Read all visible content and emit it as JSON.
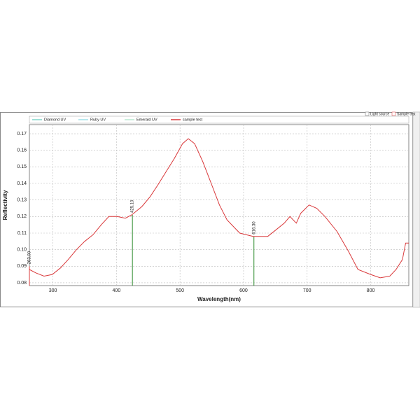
{
  "chart_data": {
    "type": "line",
    "x_label": "Wavelength(nm)",
    "y_label": "Reflectivity",
    "toggles": [
      "Light source",
      "Sample test"
    ],
    "legend_items": [
      {
        "name": "Diamond UV",
        "color": "#7fd6c8"
      },
      {
        "name": "Ruby UV",
        "color": "#9fe0e8"
      },
      {
        "name": "Emerald UV",
        "color": "#b8e8d0"
      }
    ],
    "x": [
      263,
      273,
      286,
      299,
      312,
      324,
      337,
      350,
      363,
      376,
      388,
      401,
      414,
      424,
      440,
      453,
      465,
      478,
      491,
      504,
      513,
      523,
      536,
      549,
      562,
      574,
      594,
      615,
      638,
      651,
      664,
      673,
      683,
      690,
      703,
      715,
      728,
      747,
      765,
      780,
      800,
      815,
      830,
      840,
      850,
      855,
      860
    ],
    "series": [
      {
        "name": "sample test",
        "color": "#d9383a",
        "values": [
          0.088,
          0.086,
          0.084,
          0.085,
          0.089,
          0.094,
          0.1,
          0.105,
          0.109,
          0.115,
          0.12,
          0.12,
          0.119,
          0.121,
          0.126,
          0.132,
          0.139,
          0.147,
          0.155,
          0.164,
          0.167,
          0.164,
          0.153,
          0.14,
          0.127,
          0.118,
          0.11,
          0.108,
          0.108,
          0.112,
          0.116,
          0.12,
          0.116,
          0.122,
          0.127,
          0.125,
          0.12,
          0.111,
          0.099,
          0.088,
          0.085,
          0.083,
          0.084,
          0.088,
          0.094,
          0.104,
          0.104
        ]
      }
    ],
    "markers": [
      {
        "x": 263,
        "y": 0.09,
        "label": "263.00",
        "color": "#d9383a"
      },
      {
        "x": 425.1,
        "y": 0.121,
        "label": "425.10",
        "color": "#2e8b2e"
      },
      {
        "x": 616.3,
        "y": 0.108,
        "label": "616.30",
        "color": "#2e8b2e"
      }
    ],
    "xlim": [
      263,
      860
    ],
    "xticks": [
      300,
      400,
      500,
      600,
      700,
      800
    ],
    "ylim": [
      0.0783,
      0.1755
    ],
    "yticks": [
      0.08,
      0.09,
      {
        "value": 0.1,
        "label": "0.10"
      },
      0.11,
      0.12,
      0.13,
      0.14,
      0.15,
      0.16,
      0.17
    ],
    "grid": true
  }
}
